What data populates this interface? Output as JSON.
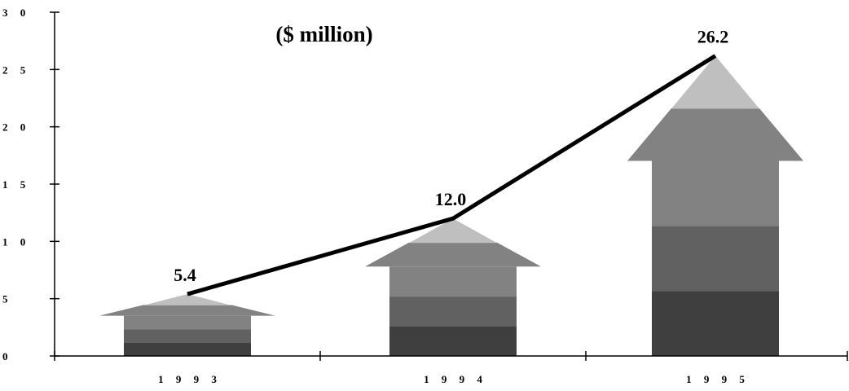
{
  "chart_data": {
    "type": "bar",
    "title": "($ million)",
    "categories": [
      "1 9 9 3",
      "1 9 9 4",
      "1 9 9 5"
    ],
    "values": [
      5.4,
      12.0,
      26.2
    ],
    "data_labels": [
      "5.4",
      "12.0",
      "26.2"
    ],
    "y_ticks": [
      0,
      5,
      10,
      15,
      20,
      25,
      30
    ],
    "y_tick_labels": [
      "0",
      "5",
      "1 0",
      "1 5",
      "2 0",
      "2 5",
      "3 0"
    ],
    "ylim": [
      0,
      30
    ],
    "grid": false,
    "legend": "none",
    "overlay_line": true,
    "colors": {
      "band_1": "#3f3f3f",
      "band_2": "#616161",
      "band_3": "#828282",
      "band_4": "#bfbfbf",
      "axis": "#000000",
      "line": "#000000"
    }
  }
}
